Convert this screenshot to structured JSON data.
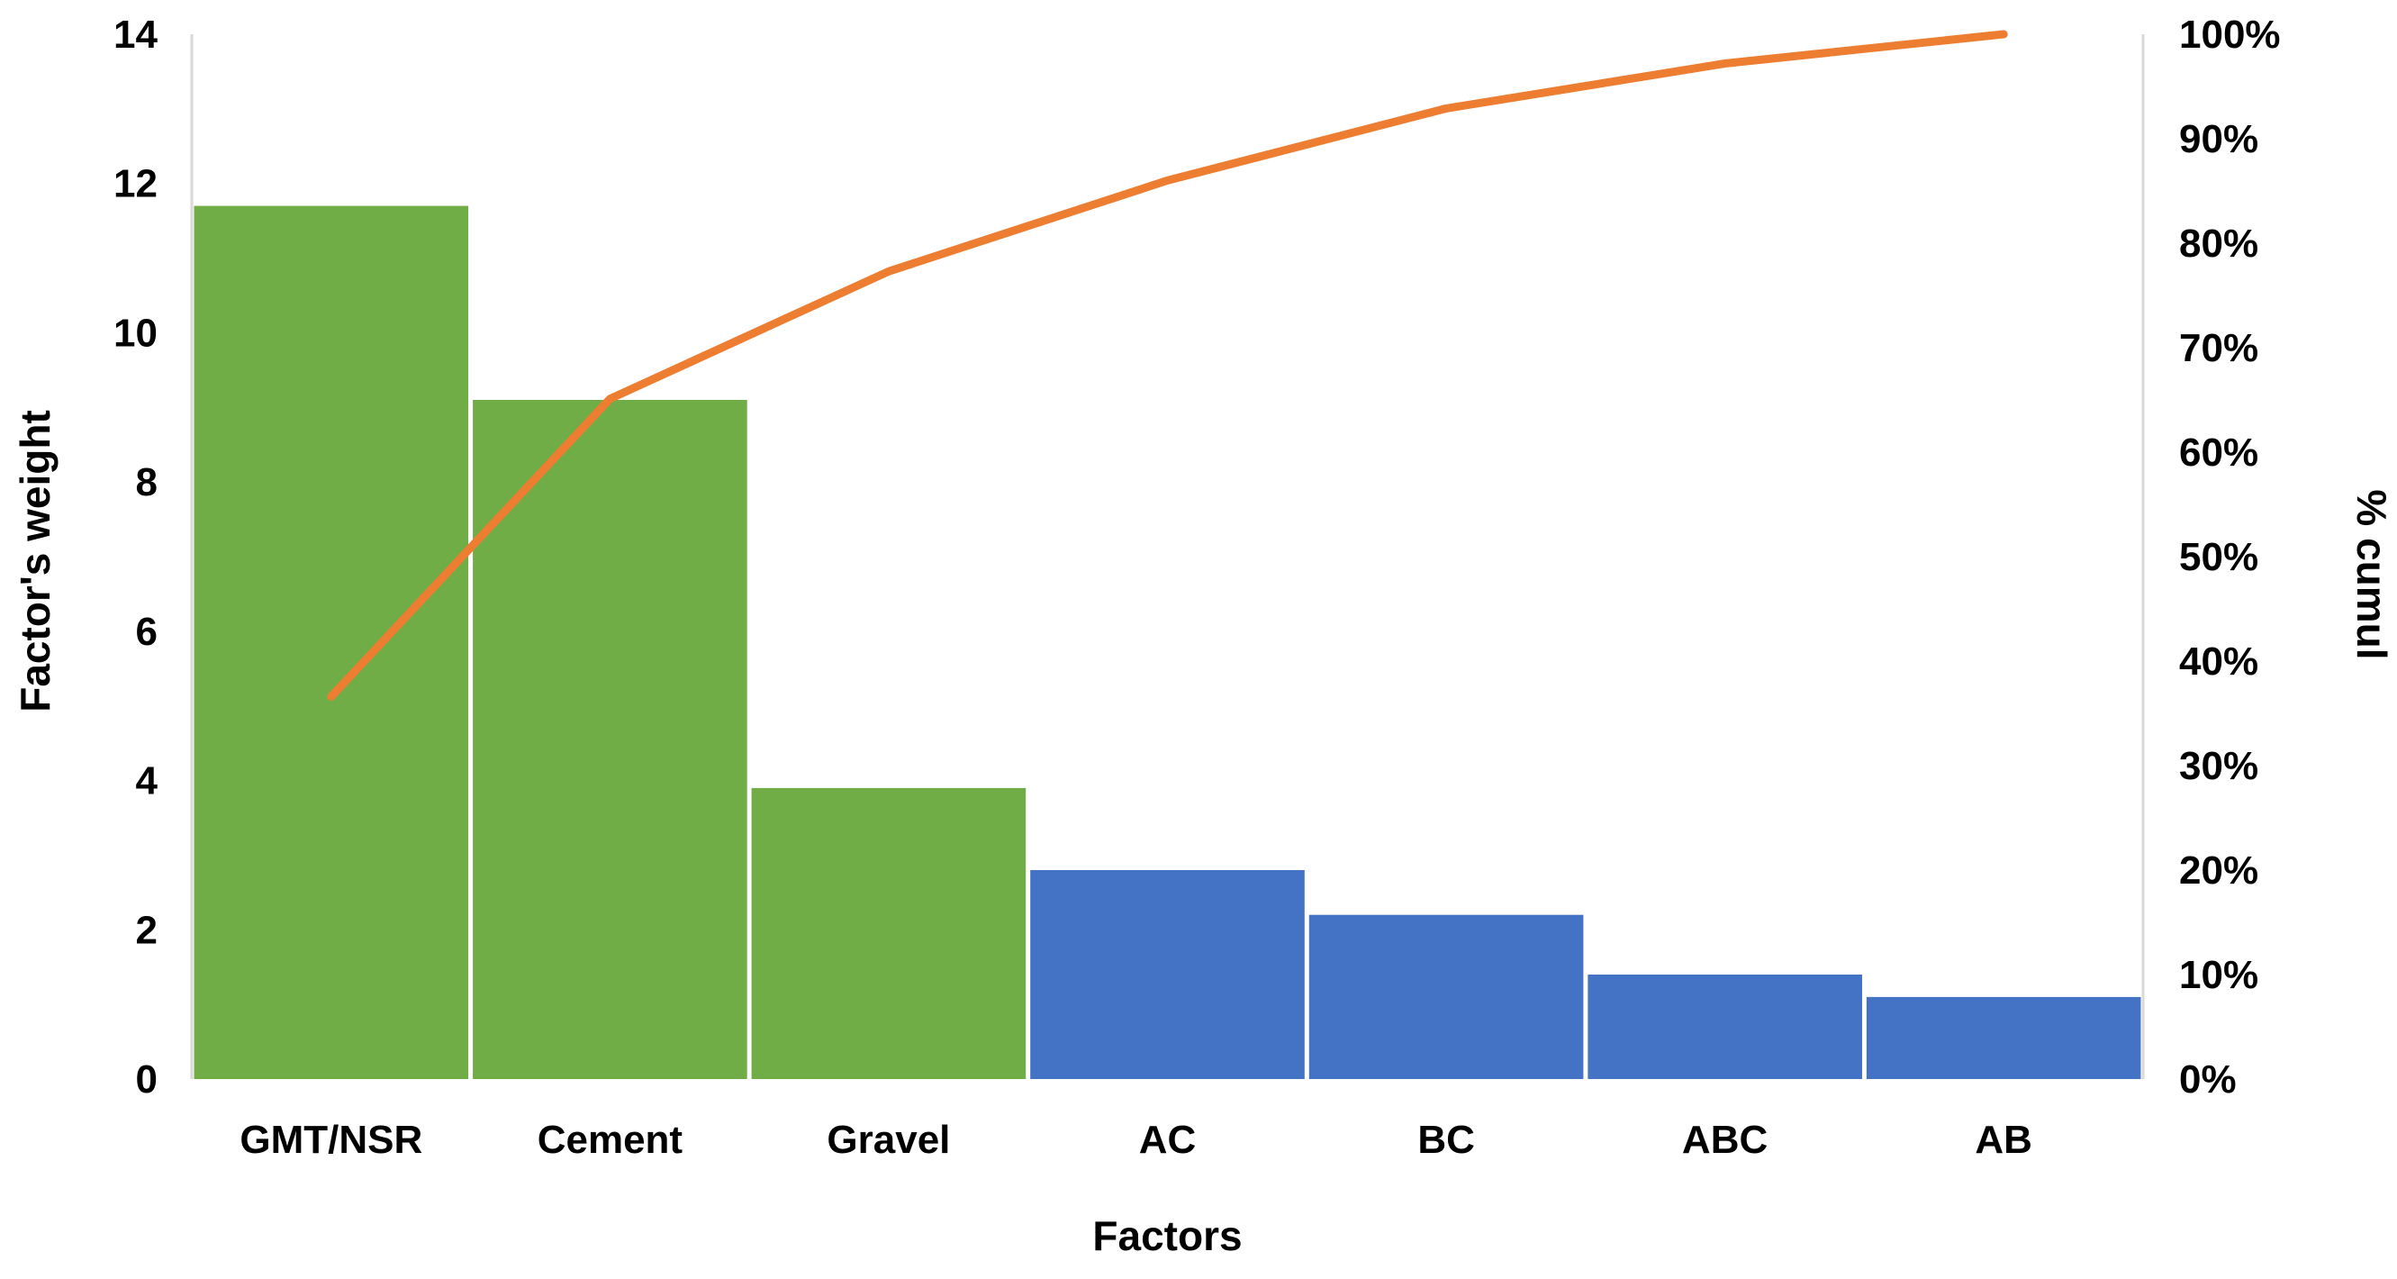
{
  "chart_data": {
    "type": "bar",
    "subtype": "pareto",
    "title": "",
    "xlabel": "Factors",
    "ylabel": "Factor's weight",
    "y2label": "% cumul",
    "categories": [
      "GMT/NSR",
      "Cement",
      "Gravel",
      "AC",
      "BC",
      "ABC",
      "AB"
    ],
    "series": [
      {
        "kind": "bar",
        "axis": "left",
        "values": [
          11.7,
          9.1,
          3.9,
          2.8,
          2.2,
          1.4,
          1.1
        ],
        "colors": [
          "#70ad47",
          "#70ad47",
          "#70ad47",
          "#4472c4",
          "#4472c4",
          "#4472c4",
          "#4472c4"
        ]
      },
      {
        "kind": "line",
        "axis": "right",
        "color": "#ed7d31",
        "values": [
          36.6,
          65.1,
          77.3,
          86.0,
          92.9,
          97.2,
          100.0
        ]
      }
    ],
    "ylim": [
      0,
      14
    ],
    "yticks": [
      "0",
      "2",
      "4",
      "6",
      "8",
      "10",
      "12",
      "14"
    ],
    "y2lim": [
      0,
      100
    ],
    "y2ticks": [
      "0%",
      "10%",
      "20%",
      "30%",
      "40%",
      "50%",
      "60%",
      "70%",
      "80%",
      "90%",
      "100%"
    ],
    "grid": false,
    "legend": "none"
  }
}
